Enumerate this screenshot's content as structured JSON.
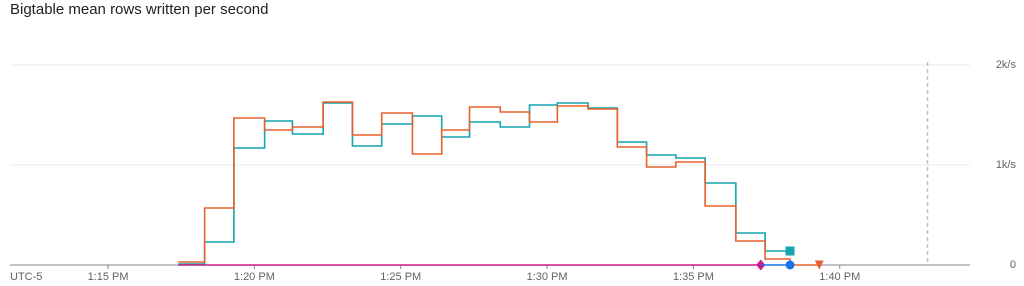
{
  "chart_data": {
    "type": "line",
    "step": true,
    "title": "Bigtable mean rows written per second",
    "timezone": "UTC-5",
    "xlim": [
      11.65,
      44.45
    ],
    "xticks": [
      {
        "value": 15,
        "label": "1:15 PM"
      },
      {
        "value": 20,
        "label": "1:20 PM"
      },
      {
        "value": 25,
        "label": "1:25 PM"
      },
      {
        "value": 30,
        "label": "1:30 PM"
      },
      {
        "value": 35,
        "label": "1:35 PM"
      },
      {
        "value": 40,
        "label": "1:40 PM"
      }
    ],
    "ylim": [
      0,
      2200
    ],
    "yticks": [
      0,
      {
        "value": 1000,
        "label": "1k/s"
      },
      {
        "value": 2000,
        "label": "2k/s"
      }
    ],
    "grid": true,
    "now_marker": 43,
    "series": [
      {
        "color": "#12a4af",
        "marker": "square",
        "x": [
          17.4,
          18.3,
          19.3,
          20.35,
          21.3,
          22.35,
          23.35,
          24.35,
          25.4,
          26.4,
          27.35,
          28.4,
          29.4,
          30.35,
          31.4,
          32.4,
          33.4,
          34.4,
          35.4,
          36.45,
          37.45,
          38.3
        ],
        "values": [
          10,
          230,
          1170,
          1440,
          1310,
          1620,
          1190,
          1410,
          1490,
          1280,
          1430,
          1380,
          1600,
          1620,
          1570,
          1230,
          1100,
          1070,
          820,
          320,
          140,
          140
        ]
      },
      {
        "color": "#e8602c",
        "marker": "triangle",
        "x": [
          17.4,
          18.3,
          19.3,
          20.35,
          21.3,
          22.35,
          23.35,
          24.35,
          25.4,
          26.4,
          27.35,
          28.4,
          29.4,
          30.35,
          31.4,
          32.4,
          33.4,
          34.4,
          35.4,
          36.45,
          37.45,
          38.3,
          39.3
        ],
        "values": [
          30,
          570,
          1470,
          1350,
          1380,
          1630,
          1300,
          1520,
          1110,
          1350,
          1580,
          1530,
          1430,
          1590,
          1560,
          1180,
          980,
          1030,
          590,
          240,
          60,
          0,
          0
        ]
      },
      {
        "color": "#d01884",
        "marker": "diamond",
        "x": [
          17.4,
          37.3
        ],
        "values": [
          0,
          0
        ]
      },
      {
        "color": "#1a73e8",
        "marker": "circle",
        "x": [
          37.3,
          38.3
        ],
        "values": [
          0,
          0
        ]
      }
    ]
  }
}
